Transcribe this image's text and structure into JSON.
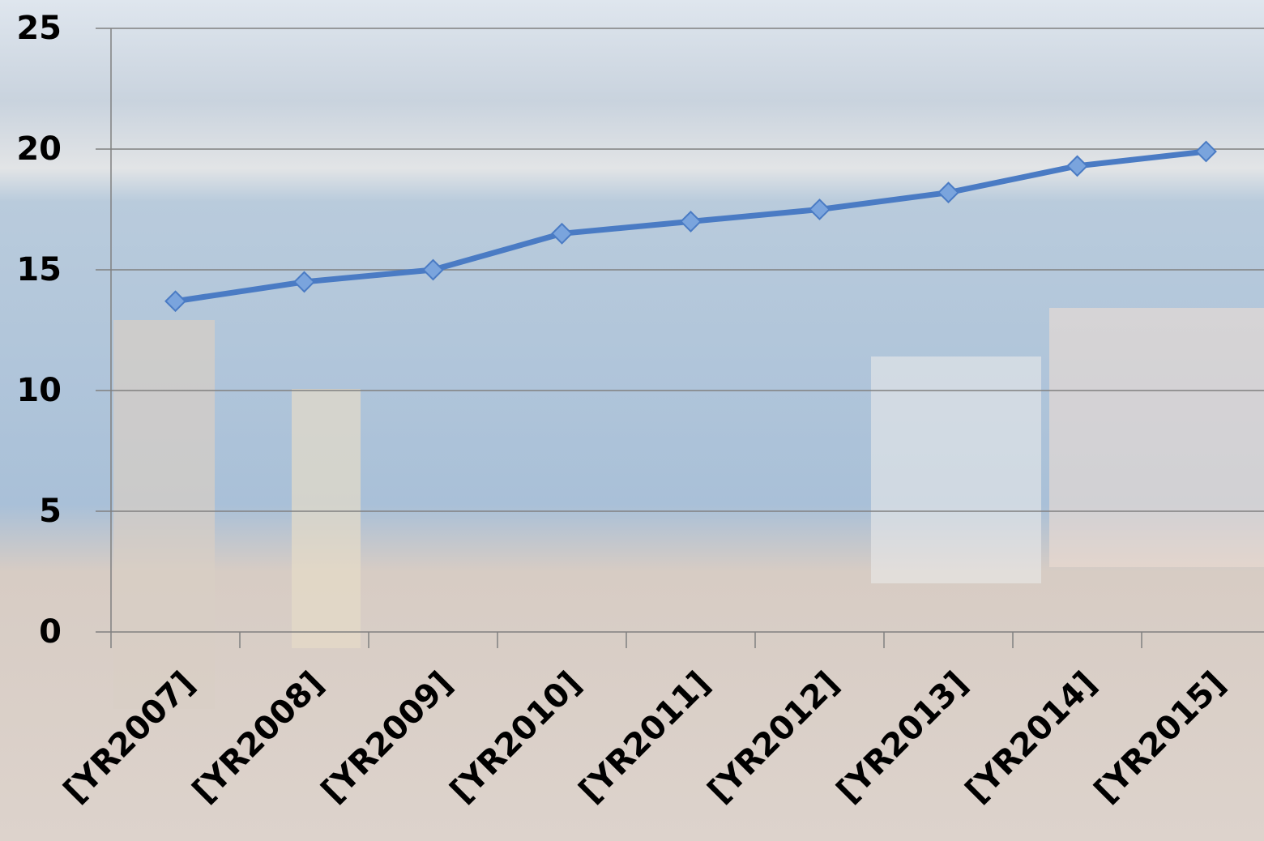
{
  "chart_data": {
    "type": "line",
    "categories": [
      "[YR2007]",
      "[YR2008]",
      "[YR2009]",
      "[YR2010]",
      "[YR2011]",
      "[YR2012]",
      "[YR2013]",
      "[YR2014]",
      "[YR2015]"
    ],
    "values": [
      13.7,
      14.5,
      15.0,
      16.5,
      17.0,
      17.5,
      18.2,
      19.3,
      19.9
    ],
    "color": "#4a7bc4",
    "ylim": [
      0,
      25
    ],
    "yticks": [
      0,
      5,
      10,
      15,
      20,
      25
    ],
    "grid": true
  }
}
